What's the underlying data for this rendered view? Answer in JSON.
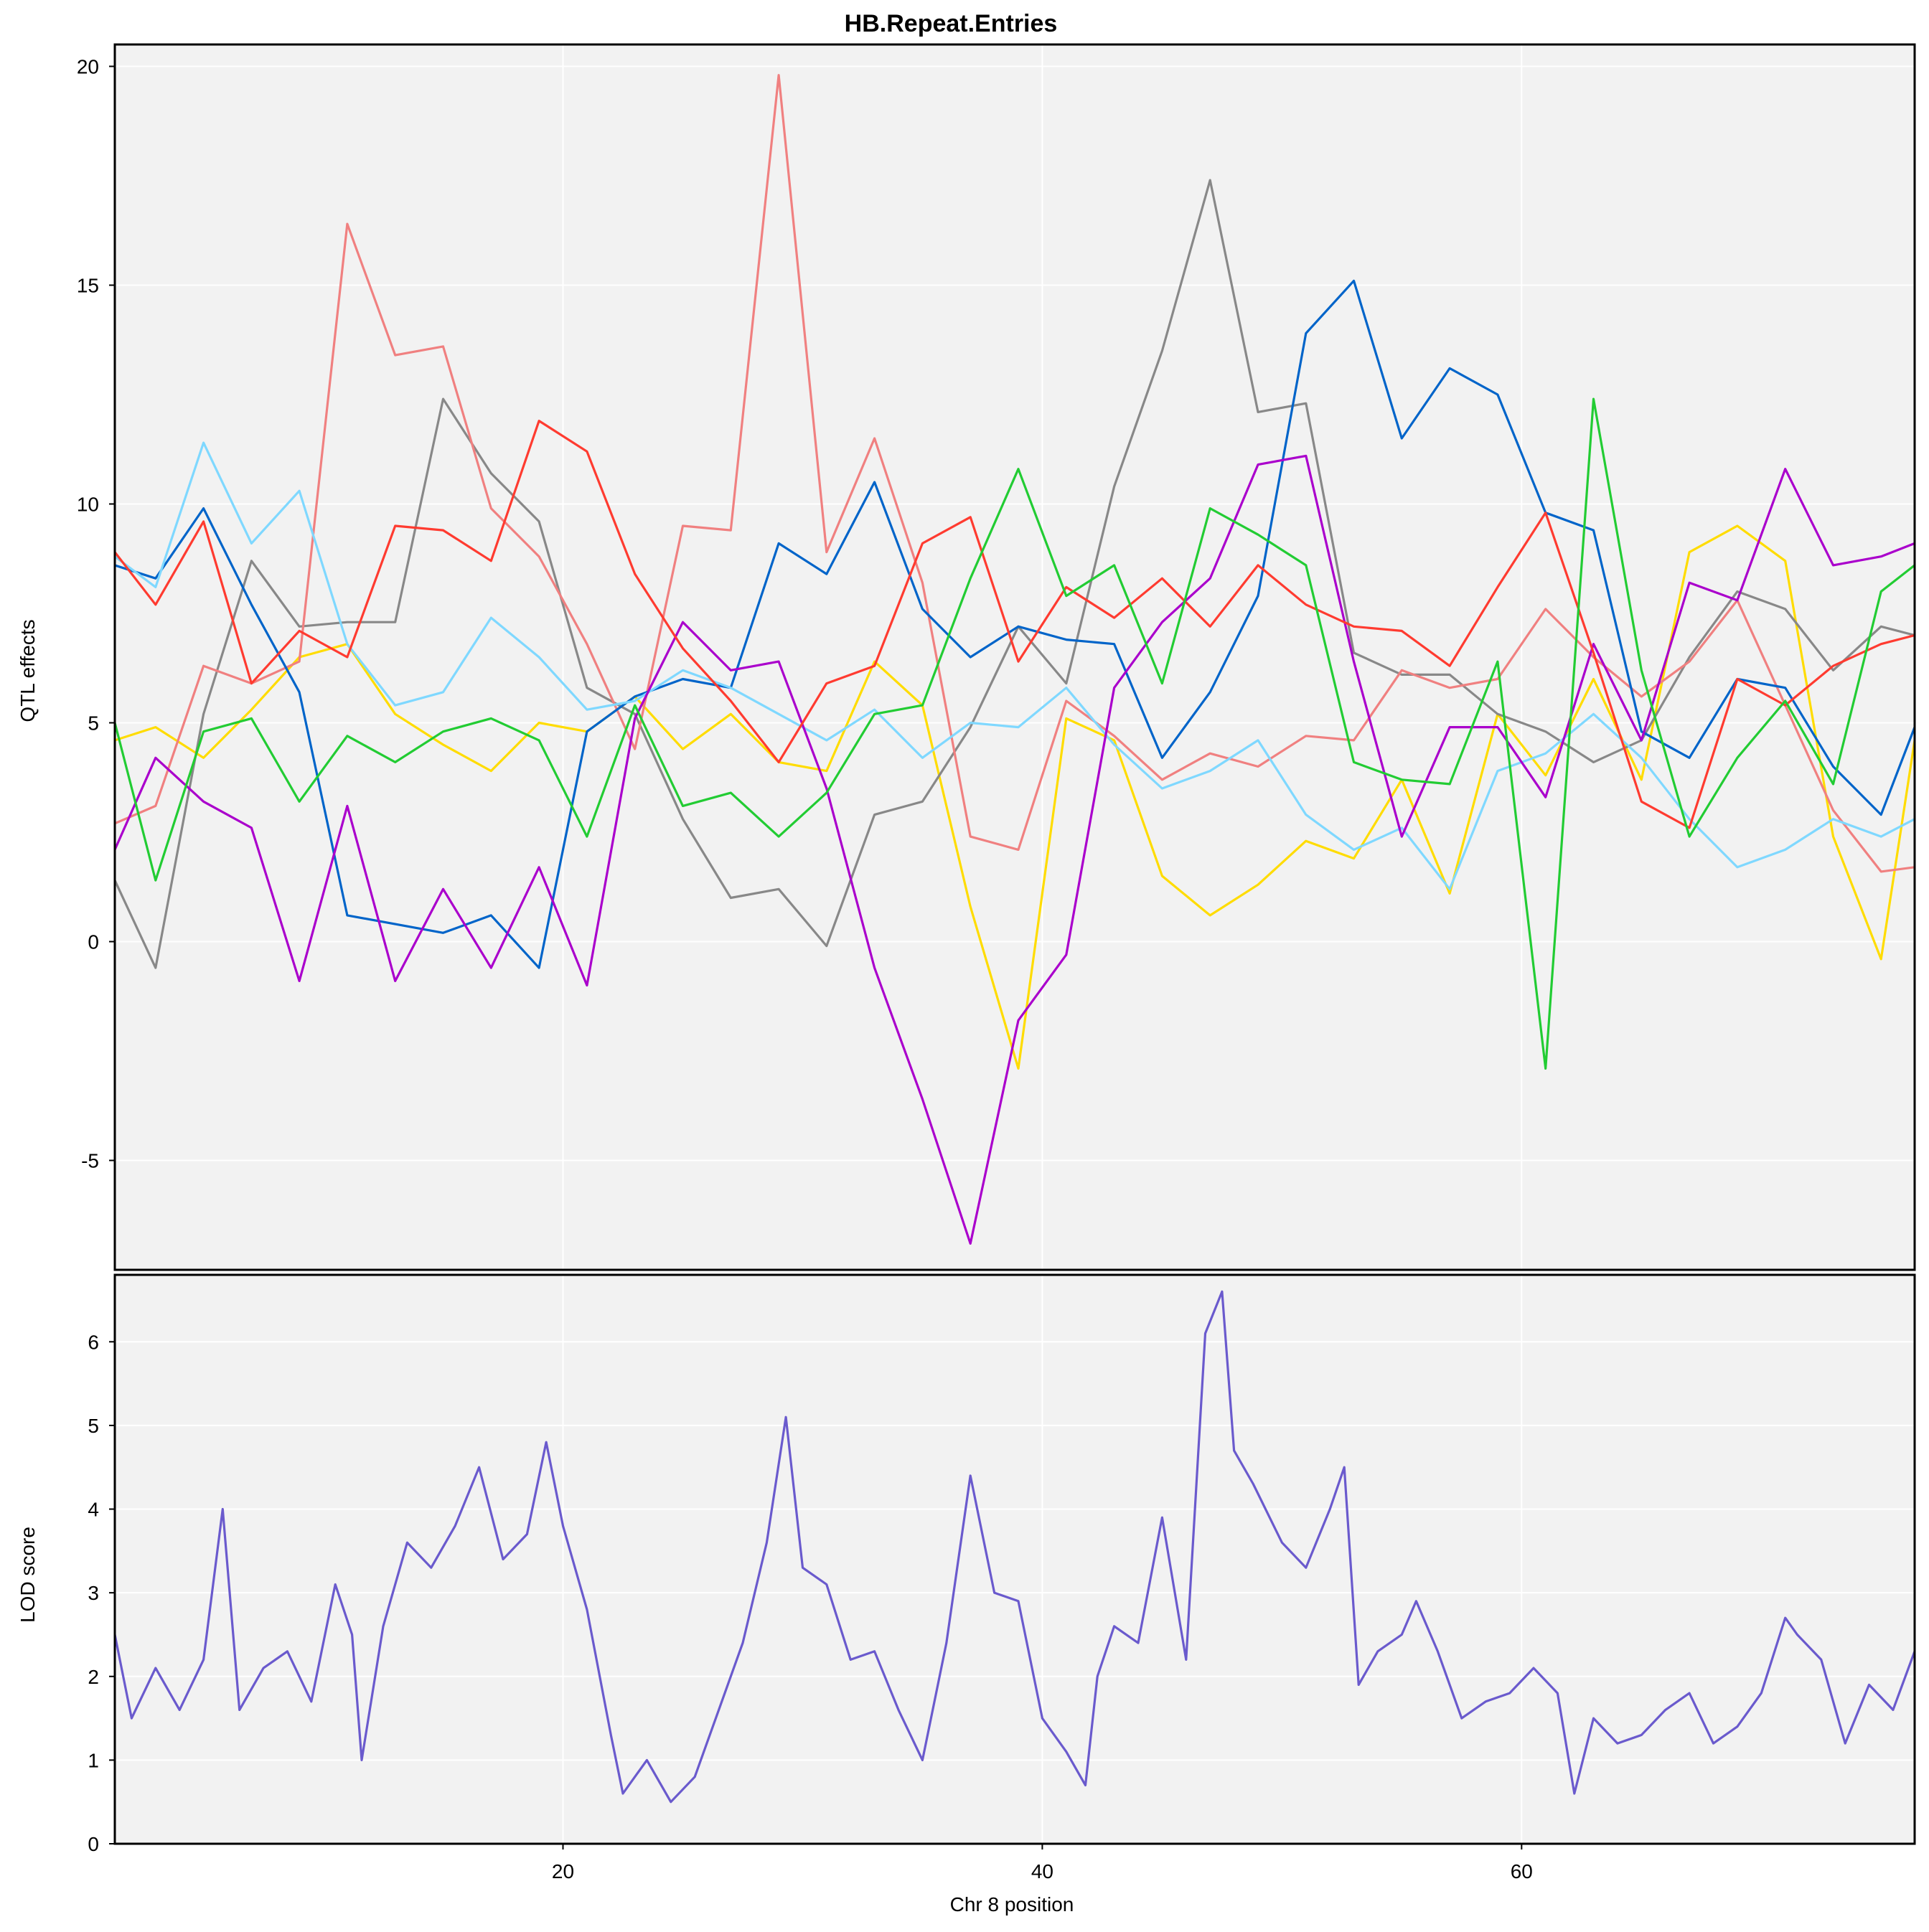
{
  "chart_data": [
    {
      "type": "line",
      "title": "HB.Repeat.Entries",
      "xlabel": "",
      "ylabel": "QTL effects",
      "xlim": [
        1.3,
        76.4
      ],
      "ylim": [
        -7.5,
        20.5
      ],
      "x_ticks": [
        20,
        40,
        60
      ],
      "y_ticks": [
        -5,
        0,
        5,
        10,
        15,
        20
      ],
      "y_tick_labels": [
        "-5",
        "0",
        "5",
        "10",
        "15",
        "20"
      ],
      "grid": true,
      "series": [
        {
          "color": "#FFDC00",
          "x": [
            1.3,
            3,
            5,
            7,
            9,
            11,
            13,
            15,
            17,
            19,
            21,
            23,
            25,
            27,
            29,
            31,
            33,
            35,
            37,
            39,
            41,
            43,
            45,
            47,
            49,
            51,
            53,
            55,
            57,
            59,
            61,
            63,
            65,
            67,
            69,
            71,
            73,
            75,
            76.4
          ],
          "y": [
            4.6,
            4.9,
            4.2,
            5.3,
            6.5,
            6.8,
            5.2,
            4.5,
            3.9,
            5.0,
            4.8,
            5.6,
            4.4,
            5.2,
            4.1,
            3.9,
            6.4,
            5.4,
            0.8,
            -2.9,
            5.1,
            4.6,
            1.5,
            0.6,
            1.3,
            2.3,
            1.9,
            3.7,
            1.1,
            5.2,
            3.8,
            6.0,
            3.7,
            8.9,
            9.5,
            8.7,
            2.4,
            -0.4,
            4.6
          ]
        },
        {
          "color": "#888888",
          "x": [
            1.3,
            3,
            5,
            7,
            9,
            11,
            13,
            15,
            17,
            19,
            21,
            23,
            25,
            27,
            29,
            31,
            33,
            35,
            37,
            39,
            41,
            43,
            45,
            47,
            49,
            51,
            53,
            55,
            57,
            59,
            61,
            63,
            65,
            67,
            69,
            71,
            73,
            75,
            76.4
          ],
          "y": [
            1.4,
            -0.6,
            5.2,
            8.7,
            7.2,
            7.3,
            7.3,
            12.4,
            10.7,
            9.6,
            5.8,
            5.2,
            2.8,
            1.0,
            1.2,
            -0.1,
            2.9,
            3.2,
            4.9,
            7.2,
            5.9,
            10.4,
            13.5,
            17.4,
            12.1,
            12.3,
            6.6,
            6.1,
            6.1,
            5.2,
            4.8,
            4.1,
            4.6,
            6.5,
            8.0,
            7.6,
            6.2,
            7.2,
            7.0
          ]
        },
        {
          "color": "#F08080",
          "x": [
            1.3,
            3,
            5,
            7,
            9,
            11,
            13,
            15,
            17,
            19,
            21,
            23,
            25,
            27,
            29,
            31,
            33,
            35,
            37,
            39,
            41,
            43,
            45,
            47,
            49,
            51,
            53,
            55,
            57,
            59,
            61,
            63,
            65,
            67,
            69,
            71,
            73,
            75,
            76.4
          ],
          "y": [
            2.7,
            3.1,
            6.3,
            5.9,
            6.4,
            16.4,
            13.4,
            13.6,
            9.9,
            8.8,
            6.8,
            4.4,
            9.5,
            9.4,
            19.8,
            8.9,
            11.5,
            8.2,
            2.4,
            2.1,
            5.5,
            4.7,
            3.7,
            4.3,
            4.0,
            4.7,
            4.6,
            6.2,
            5.8,
            6.0,
            7.6,
            6.5,
            5.6,
            6.4,
            7.8,
            5.4,
            3.0,
            1.6,
            1.7
          ]
        },
        {
          "color": "#0064C9",
          "x": [
            1.3,
            3,
            5,
            7,
            9,
            11,
            13,
            15,
            17,
            19,
            21,
            23,
            25,
            27,
            29,
            31,
            33,
            35,
            37,
            39,
            41,
            43,
            45,
            47,
            49,
            51,
            53,
            55,
            57,
            59,
            61,
            63,
            65,
            67,
            69,
            71,
            73,
            75,
            76.4
          ],
          "y": [
            8.6,
            8.3,
            9.9,
            7.7,
            5.7,
            0.6,
            0.4,
            0.2,
            0.6,
            -0.6,
            4.8,
            5.6,
            6.0,
            5.8,
            9.1,
            8.4,
            10.5,
            7.6,
            6.5,
            7.2,
            6.9,
            6.8,
            4.2,
            5.7,
            7.9,
            13.9,
            15.1,
            11.5,
            13.1,
            12.5,
            9.8,
            9.4,
            4.8,
            4.2,
            6.0,
            5.8,
            4.0,
            2.9,
            4.9
          ]
        },
        {
          "color": "#7FD8FF",
          "x": [
            1.3,
            3,
            5,
            7,
            9,
            11,
            13,
            15,
            17,
            19,
            21,
            23,
            25,
            27,
            29,
            31,
            33,
            35,
            37,
            39,
            41,
            43,
            45,
            47,
            49,
            51,
            53,
            55,
            57,
            59,
            61,
            63,
            65,
            67,
            69,
            71,
            73,
            75,
            76.4
          ],
          "y": [
            8.8,
            8.1,
            11.4,
            9.1,
            10.3,
            6.8,
            5.4,
            5.7,
            7.4,
            6.5,
            5.3,
            5.5,
            6.2,
            5.8,
            5.2,
            4.6,
            5.3,
            4.2,
            5.0,
            4.9,
            5.8,
            4.5,
            3.5,
            3.9,
            4.6,
            2.9,
            2.1,
            2.6,
            1.2,
            3.9,
            4.3,
            5.2,
            4.2,
            2.8,
            1.7,
            2.1,
            2.8,
            2.4,
            2.8
          ]
        },
        {
          "color": "#AA00CC",
          "x": [
            1.3,
            3,
            5,
            7,
            9,
            11,
            13,
            15,
            17,
            19,
            21,
            23,
            25,
            27,
            29,
            31,
            33,
            35,
            37,
            39,
            41,
            43,
            45,
            47,
            49,
            51,
            53,
            55,
            57,
            59,
            61,
            63,
            65,
            67,
            69,
            71,
            73,
            75,
            76.4
          ],
          "y": [
            2.1,
            4.2,
            3.2,
            2.6,
            -0.9,
            3.1,
            -0.9,
            1.2,
            -0.6,
            1.7,
            -1.0,
            5.1,
            7.3,
            6.2,
            6.4,
            3.5,
            -0.6,
            -3.6,
            -6.9,
            -1.8,
            -0.3,
            5.8,
            7.3,
            8.3,
            10.9,
            11.1,
            6.4,
            2.4,
            4.9,
            4.9,
            3.3,
            6.8,
            4.6,
            8.2,
            7.8,
            10.8,
            8.6,
            8.8,
            9.1
          ]
        },
        {
          "color": "#FF3B30",
          "x": [
            1.3,
            3,
            5,
            7,
            9,
            11,
            13,
            15,
            17,
            19,
            21,
            23,
            25,
            27,
            29,
            31,
            33,
            35,
            37,
            39,
            41,
            43,
            45,
            47,
            49,
            51,
            53,
            55,
            57,
            59,
            61,
            63,
            65,
            67,
            69,
            71,
            73,
            75,
            76.4
          ],
          "y": [
            8.9,
            7.7,
            9.6,
            5.9,
            7.1,
            6.5,
            9.5,
            9.4,
            8.7,
            11.9,
            11.2,
            8.4,
            6.7,
            5.5,
            4.1,
            5.9,
            6.3,
            9.1,
            9.7,
            6.4,
            8.1,
            7.4,
            8.3,
            7.2,
            8.6,
            7.7,
            7.2,
            7.1,
            6.3,
            8.1,
            9.8,
            6.6,
            3.2,
            2.6,
            6.0,
            5.4,
            6.3,
            6.8,
            7.0
          ]
        },
        {
          "color": "#22CC33",
          "x": [
            1.3,
            3,
            5,
            7,
            9,
            11,
            13,
            15,
            17,
            19,
            21,
            23,
            25,
            27,
            29,
            31,
            33,
            35,
            37,
            39,
            41,
            43,
            45,
            47,
            49,
            51,
            53,
            55,
            57,
            59,
            61,
            63,
            65,
            67,
            69,
            71,
            73,
            75,
            76.4
          ],
          "y": [
            5.0,
            1.4,
            4.8,
            5.1,
            3.2,
            4.7,
            4.1,
            4.8,
            5.1,
            4.6,
            2.4,
            5.4,
            3.1,
            3.4,
            2.4,
            3.4,
            5.2,
            5.4,
            8.3,
            10.8,
            7.9,
            8.6,
            5.9,
            9.9,
            9.3,
            8.6,
            4.1,
            3.7,
            3.6,
            6.4,
            -2.9,
            12.4,
            6.2,
            2.4,
            4.2,
            5.5,
            3.6,
            8.0,
            8.6
          ]
        }
      ]
    },
    {
      "type": "line",
      "title": "",
      "xlabel": "Chr 8 position",
      "ylabel": "LOD score",
      "xlim": [
        1.3,
        76.4
      ],
      "ylim": [
        0,
        6.8
      ],
      "x_ticks": [
        20,
        40,
        60
      ],
      "x_tick_labels": [
        "20",
        "40",
        "60"
      ],
      "y_ticks": [
        0,
        1,
        2,
        3,
        4,
        5,
        6
      ],
      "y_tick_labels": [
        "0",
        "1",
        "2",
        "3",
        "4",
        "5",
        "6"
      ],
      "grid": true,
      "series": [
        {
          "color": "#6A5ACD",
          "x": [
            1.3,
            2,
            3,
            4,
            5,
            5.8,
            6.5,
            7.5,
            8.5,
            9.5,
            10.5,
            11.2,
            11.6,
            12.5,
            13.5,
            14.5,
            15.5,
            16.5,
            17.5,
            18.5,
            19.3,
            20,
            21,
            22,
            22.5,
            23.5,
            24.5,
            25.5,
            26.5,
            27.5,
            28.5,
            29.3,
            30,
            31,
            32,
            33,
            34,
            35,
            36,
            37,
            38,
            39,
            40,
            41,
            41.8,
            42.3,
            43,
            44,
            45,
            46,
            46.8,
            47.5,
            48,
            48.8,
            50,
            51,
            52,
            52.6,
            53.2,
            54,
            55,
            55.6,
            56.5,
            57.5,
            58.5,
            59.5,
            60.5,
            61.5,
            62.2,
            63,
            64,
            65,
            66,
            67,
            68,
            69,
            70,
            71,
            71.5,
            72.5,
            73.5,
            74.5,
            75.5,
            76.4
          ],
          "y": [
            2.5,
            1.5,
            2.1,
            1.6,
            2.2,
            4.0,
            1.6,
            2.1,
            2.3,
            1.7,
            3.1,
            2.5,
            1.0,
            2.6,
            3.6,
            3.3,
            3.8,
            4.5,
            3.4,
            3.7,
            4.8,
            3.8,
            2.8,
            1.3,
            0.6,
            1.0,
            0.5,
            0.8,
            1.6,
            2.4,
            3.6,
            5.1,
            3.3,
            3.1,
            2.2,
            2.3,
            1.6,
            1.0,
            2.4,
            4.4,
            3.0,
            2.9,
            1.5,
            1.1,
            0.7,
            2.0,
            2.6,
            2.4,
            3.9,
            2.2,
            6.1,
            6.6,
            4.7,
            4.3,
            3.6,
            3.3,
            4.0,
            4.5,
            1.9,
            2.3,
            2.5,
            2.9,
            2.3,
            1.5,
            1.7,
            1.8,
            2.1,
            1.8,
            0.6,
            1.5,
            1.2,
            1.3,
            1.6,
            1.8,
            1.2,
            1.4,
            1.8,
            2.7,
            2.5,
            2.2,
            1.2,
            1.9,
            1.6,
            2.3
          ]
        }
      ]
    }
  ]
}
